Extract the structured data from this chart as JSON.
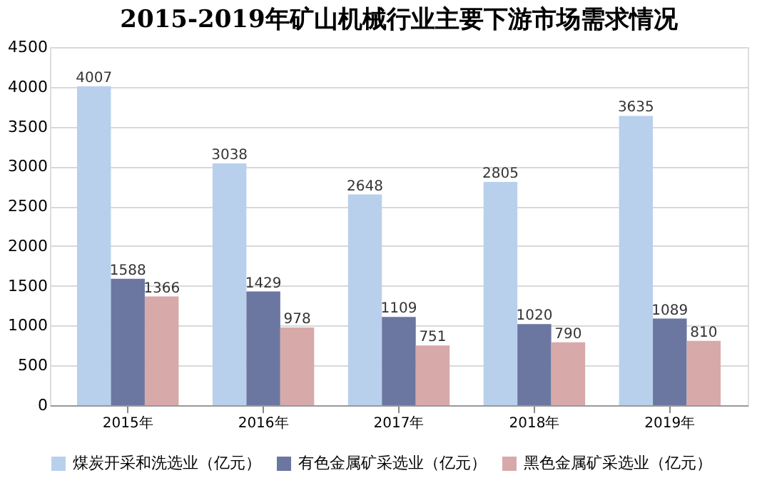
{
  "chart_data": {
    "type": "bar",
    "title": "2015-2019年矿山机械行业主要下游市场需求情况",
    "categories": [
      "2015年",
      "2016年",
      "2017年",
      "2018年",
      "2019年"
    ],
    "series": [
      {
        "name": "煤炭开采和洗选业（亿元）",
        "color": "#b8d0ec",
        "values": [
          4007,
          3038,
          2648,
          2805,
          3635
        ]
      },
      {
        "name": "有色金属矿采选业（亿元）",
        "color": "#6b77a0",
        "values": [
          1588,
          1429,
          1109,
          1020,
          1089
        ]
      },
      {
        "name": "黑色金属矿采选业（亿元）",
        "color": "#d8a9a9",
        "values": [
          1366,
          978,
          751,
          790,
          810
        ]
      }
    ],
    "ylim": [
      0,
      4500
    ],
    "yticks": [
      0,
      500,
      1000,
      1500,
      2000,
      2500,
      3000,
      3500,
      4000,
      4500
    ],
    "grid": "y",
    "legend": "bottom",
    "data_labels": true
  }
}
